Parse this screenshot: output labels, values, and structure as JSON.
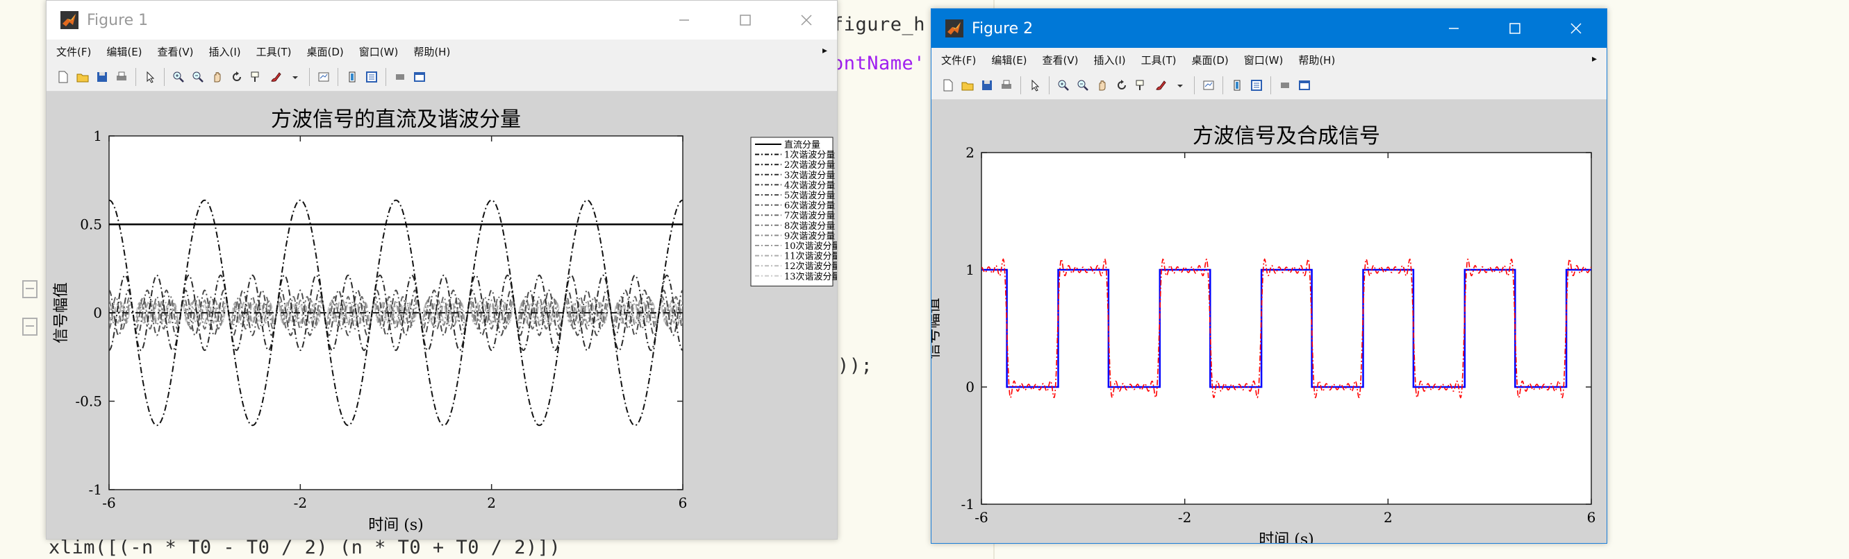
{
  "editor": {
    "code_fragments": [
      {
        "text": "figure_h",
        "kind": "code"
      },
      {
        "text": "ontName'",
        "kind": "str"
      },
      {
        "text": "));",
        "kind": "code"
      },
      {
        "text": "xlim([(-n * T0 - T0 / 2) (n * T0 + T0 / 2)])",
        "kind": "code"
      }
    ]
  },
  "figure1": {
    "title": "Figure 1",
    "menus": [
      "文件(F)",
      "编辑(E)",
      "查看(V)",
      "插入(I)",
      "工具(T)",
      "桌面(D)",
      "窗口(W)",
      "帮助(H)"
    ],
    "menu_arrow": "▸",
    "toolbar_icons": [
      "new-figure-icon",
      "open-file-icon",
      "save-icon",
      "print-icon",
      "sep",
      "pointer-icon",
      "sep",
      "zoom-in-icon",
      "zoom-out-icon",
      "pan-icon",
      "rotate-icon",
      "data-cursor-icon",
      "brush-icon",
      "brush-dropdown-icon",
      "sep",
      "link-icon",
      "sep",
      "colorbar-icon",
      "legend-icon",
      "sep",
      "hide-tools-icon",
      "dock-icon"
    ]
  },
  "figure2": {
    "title": "Figure 2",
    "menus": [
      "文件(F)",
      "编辑(E)",
      "查看(V)",
      "插入(I)",
      "工具(T)",
      "桌面(D)",
      "窗口(W)",
      "帮助(H)"
    ],
    "menu_arrow": "▸",
    "toolbar_icons": [
      "new-figure-icon",
      "open-file-icon",
      "save-icon",
      "print-icon",
      "sep",
      "pointer-icon",
      "sep",
      "zoom-in-icon",
      "zoom-out-icon",
      "pan-icon",
      "rotate-icon",
      "data-cursor-icon",
      "brush-icon",
      "brush-dropdown-icon",
      "sep",
      "link-icon",
      "sep",
      "colorbar-icon",
      "legend-icon",
      "sep",
      "hide-tools-icon",
      "dock-icon"
    ]
  },
  "chart_data": [
    {
      "type": "line",
      "title": "方波信号的直流及谐波分量",
      "xlabel": "时间 (s)",
      "ylabel": "信号幅值",
      "xlim": [
        -6,
        6
      ],
      "ylim": [
        -1,
        1
      ],
      "xticks": [
        -6,
        -2,
        2,
        6
      ],
      "yticks": [
        -1,
        -0.5,
        0,
        0.5,
        1
      ],
      "xtick_labels": [
        "-6",
        "-2",
        "2",
        "6"
      ],
      "ytick_labels": [
        "-1",
        "-0.5",
        "0",
        "0.5",
        "1"
      ],
      "period": 2,
      "dc_value": 0.5,
      "legend_position": "right-outside",
      "grid": false,
      "series": [
        {
          "name": "直流分量",
          "harmonic": 0,
          "color": "#000000",
          "style": "solid"
        },
        {
          "name": "1次谐波分量",
          "harmonic": 1,
          "color": "#111111",
          "style": "dashdot"
        },
        {
          "name": "2次谐波分量",
          "harmonic": 2,
          "color": "#1e1e1e",
          "style": "dashdot"
        },
        {
          "name": "3次谐波分量",
          "harmonic": 3,
          "color": "#2c2c2c",
          "style": "dashdot"
        },
        {
          "name": "4次谐波分量",
          "harmonic": 4,
          "color": "#3c3c3c",
          "style": "dashdot"
        },
        {
          "name": "5次谐波分量",
          "harmonic": 5,
          "color": "#4c4c4c",
          "style": "dashdot"
        },
        {
          "name": "6次谐波分量",
          "harmonic": 6,
          "color": "#5c5c5c",
          "style": "dashdot"
        },
        {
          "name": "7次谐波分量",
          "harmonic": 7,
          "color": "#6c6c6c",
          "style": "dashdot"
        },
        {
          "name": "8次谐波分量",
          "harmonic": 8,
          "color": "#7c7c7c",
          "style": "dashdot"
        },
        {
          "name": "9次谐波分量",
          "harmonic": 9,
          "color": "#8c8c8c",
          "style": "dashdot"
        },
        {
          "name": "10次谐波分量",
          "harmonic": 10,
          "color": "#9c9c9c",
          "style": "dashdot"
        },
        {
          "name": "11次谐波分量",
          "harmonic": 11,
          "color": "#acacac",
          "style": "dashdot"
        },
        {
          "name": "12次谐波分量",
          "harmonic": 12,
          "color": "#bcbcbc",
          "style": "dashdot"
        },
        {
          "name": "13次谐波分量",
          "harmonic": 13,
          "color": "#cccccc",
          "style": "dashdot"
        }
      ]
    },
    {
      "type": "line",
      "title": "方波信号及合成信号",
      "xlabel": "时间 (s)",
      "ylabel": "信号幅值",
      "xlim": [
        -6,
        6
      ],
      "ylim": [
        -1,
        2
      ],
      "xticks": [
        -6,
        -2,
        2,
        6
      ],
      "yticks": [
        -1,
        0,
        1,
        2
      ],
      "xtick_labels": [
        "-6",
        "-2",
        "2",
        "6"
      ],
      "ytick_labels": [
        "-1",
        "0",
        "1",
        "2"
      ],
      "period": 2,
      "duty": 0.5,
      "grid": false,
      "harmonics": 13,
      "series": [
        {
          "role": "square",
          "color": "#0000ff",
          "values_low": 0,
          "values_high": 1
        },
        {
          "role": "synthesized",
          "color": "#ff0000",
          "style": "dashdot"
        }
      ]
    }
  ]
}
